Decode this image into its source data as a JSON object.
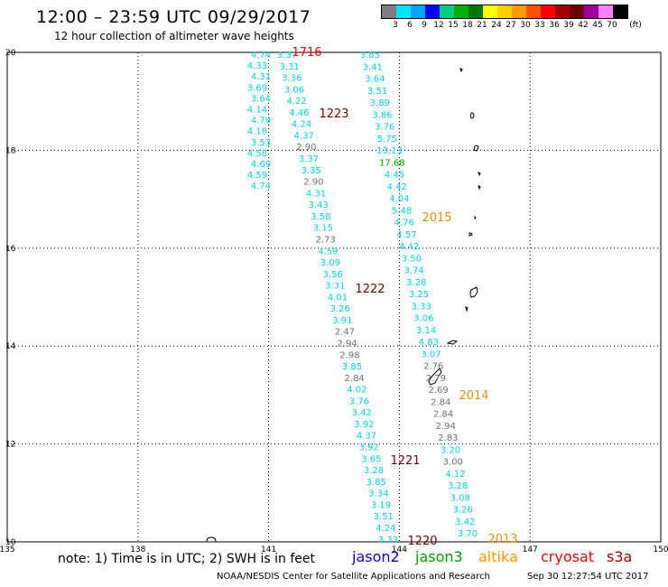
{
  "title": "12:00 – 23:59 UTC 09/29/2017",
  "subtitle": "12 hour collection of altimeter wave heights",
  "legend": {
    "unit": "(ft)",
    "bins": [
      {
        "label": "3",
        "color": "#7f7f7f"
      },
      {
        "label": "6",
        "color": "#00e5ff"
      },
      {
        "label": "9",
        "color": "#00a5ff"
      },
      {
        "label": "12",
        "color": "#0000ff"
      },
      {
        "label": "15",
        "color": "#00d07f"
      },
      {
        "label": "18",
        "color": "#00b000"
      },
      {
        "label": "21",
        "color": "#007a00"
      },
      {
        "label": "24",
        "color": "#ffff00"
      },
      {
        "label": "27",
        "color": "#ffd000"
      },
      {
        "label": "30",
        "color": "#ff9a00"
      },
      {
        "label": "33",
        "color": "#ff5000"
      },
      {
        "label": "36",
        "color": "#ff0000"
      },
      {
        "label": "39",
        "color": "#a00000"
      },
      {
        "label": "42",
        "color": "#700000"
      },
      {
        "label": "45",
        "color": "#a000a0"
      },
      {
        "label": "70",
        "color": "#ff80ff"
      },
      {
        "label": "",
        "color": "#000000"
      }
    ]
  },
  "map": {
    "lon_ticks": [
      "135",
      "138",
      "141",
      "144",
      "147",
      "150"
    ],
    "lat_ticks": [
      "10",
      "12",
      "14",
      "16",
      "18",
      "20"
    ]
  },
  "colors": {
    "cyan": "#00d2e6",
    "gray": "#707070",
    "green": "#00a000",
    "darkred": "#7a0000",
    "orange": "#f09000",
    "red": "#ff0000"
  },
  "tracks": [
    {
      "id": "t1",
      "values": [
        "4.74",
        "4.33",
        "4.31",
        "3.69",
        "3.64",
        "4.14",
        "4.79",
        "4.18",
        "3.53",
        "4.58",
        "4.69",
        "4.59",
        "4.74"
      ],
      "colors": [
        "cyan",
        "cyan",
        "cyan",
        "cyan",
        "cyan",
        "cyan",
        "cyan",
        "cyan",
        "cyan",
        "cyan",
        "cyan",
        "cyan",
        "cyan"
      ]
    },
    {
      "id": "t2",
      "values": [
        "3.37",
        "3.31",
        "3.36",
        "3.06",
        "4.22",
        "4.46",
        "4.24",
        "4.37",
        "2.90",
        "3.37",
        "3.35",
        "2.90",
        "4.31",
        "3.43",
        "3.58",
        "3.15",
        "2.73",
        "4.59",
        "3.09",
        "3.56",
        "3.31",
        "4.01",
        "3.26",
        "3.91",
        "2.47",
        "2.94",
        "2.98",
        "3.85",
        "2.84",
        "4.02",
        "3.76",
        "3.42",
        "3.92",
        "4.37",
        "3.92",
        "3.65",
        "3.28",
        "3.85",
        "3.34",
        "3.19",
        "3.51",
        "4.24",
        "3.33"
      ],
      "colors": [
        "cyan",
        "cyan",
        "cyan",
        "cyan",
        "cyan",
        "cyan",
        "cyan",
        "cyan",
        "gray",
        "cyan",
        "cyan",
        "gray",
        "cyan",
        "cyan",
        "cyan",
        "cyan",
        "gray",
        "cyan",
        "cyan",
        "cyan",
        "cyan",
        "cyan",
        "cyan",
        "cyan",
        "gray",
        "gray",
        "gray",
        "cyan",
        "gray",
        "cyan",
        "cyan",
        "cyan",
        "cyan",
        "cyan",
        "cyan",
        "cyan",
        "cyan",
        "cyan",
        "cyan",
        "cyan",
        "cyan",
        "cyan",
        "cyan"
      ]
    },
    {
      "id": "t3",
      "values": [
        "3.85",
        "3.41",
        "3.64",
        "3.51",
        "3.89",
        "3.86",
        "3.76",
        "5.75",
        "13.13",
        "17.68",
        "4.45",
        "4.42",
        "4.04",
        "5.48",
        "4.76",
        "4.57",
        "4.42",
        "3.50",
        "3.74",
        "3.28",
        "3.25",
        "3.33",
        "3.06",
        "3.14",
        "4.83",
        "3.07",
        "2.76",
        "2.79",
        "2.69",
        "2.84",
        "2.84",
        "2.94",
        "2.83",
        "3.20",
        "3.00",
        "4.12",
        "3.28",
        "3.08",
        "3.26",
        "3.42",
        "3.70"
      ],
      "colors": [
        "cyan",
        "cyan",
        "cyan",
        "cyan",
        "cyan",
        "cyan",
        "cyan",
        "cyan",
        "cyan",
        "green",
        "cyan",
        "cyan",
        "cyan",
        "cyan",
        "cyan",
        "cyan",
        "cyan",
        "cyan",
        "cyan",
        "cyan",
        "cyan",
        "cyan",
        "cyan",
        "cyan",
        "cyan",
        "cyan",
        "gray",
        "gray",
        "gray",
        "gray",
        "gray",
        "gray",
        "gray",
        "cyan",
        "gray",
        "cyan",
        "cyan",
        "cyan",
        "cyan",
        "cyan",
        "cyan"
      ]
    }
  ],
  "time_labels": [
    {
      "text": "1716",
      "color": "red"
    },
    {
      "text": "1223",
      "color": "darkred"
    },
    {
      "text": "1222",
      "color": "darkred"
    },
    {
      "text": "1221",
      "color": "darkred"
    },
    {
      "text": "1220",
      "color": "darkred"
    },
    {
      "text": "2015",
      "color": "orange"
    },
    {
      "text": "2014",
      "color": "orange"
    },
    {
      "text": "2013",
      "color": "orange"
    }
  ],
  "note": "note: 1) Time is in UTC; 2) SWH is in feet",
  "satellites": [
    {
      "name": "jason2",
      "color": "#0000ff"
    },
    {
      "name": "jason3",
      "color": "#00a000"
    },
    {
      "name": "altika",
      "color": "#ff9a00"
    },
    {
      "name": "cryosat",
      "color": "#ff0000"
    },
    {
      "name": "s3a",
      "color": "#a00000"
    }
  ],
  "footer": {
    "credit": "NOAA/NESDIS Center for Satellite Applications and Research",
    "timestamp": "Sep 30 12:27:54 UTC 2017"
  }
}
